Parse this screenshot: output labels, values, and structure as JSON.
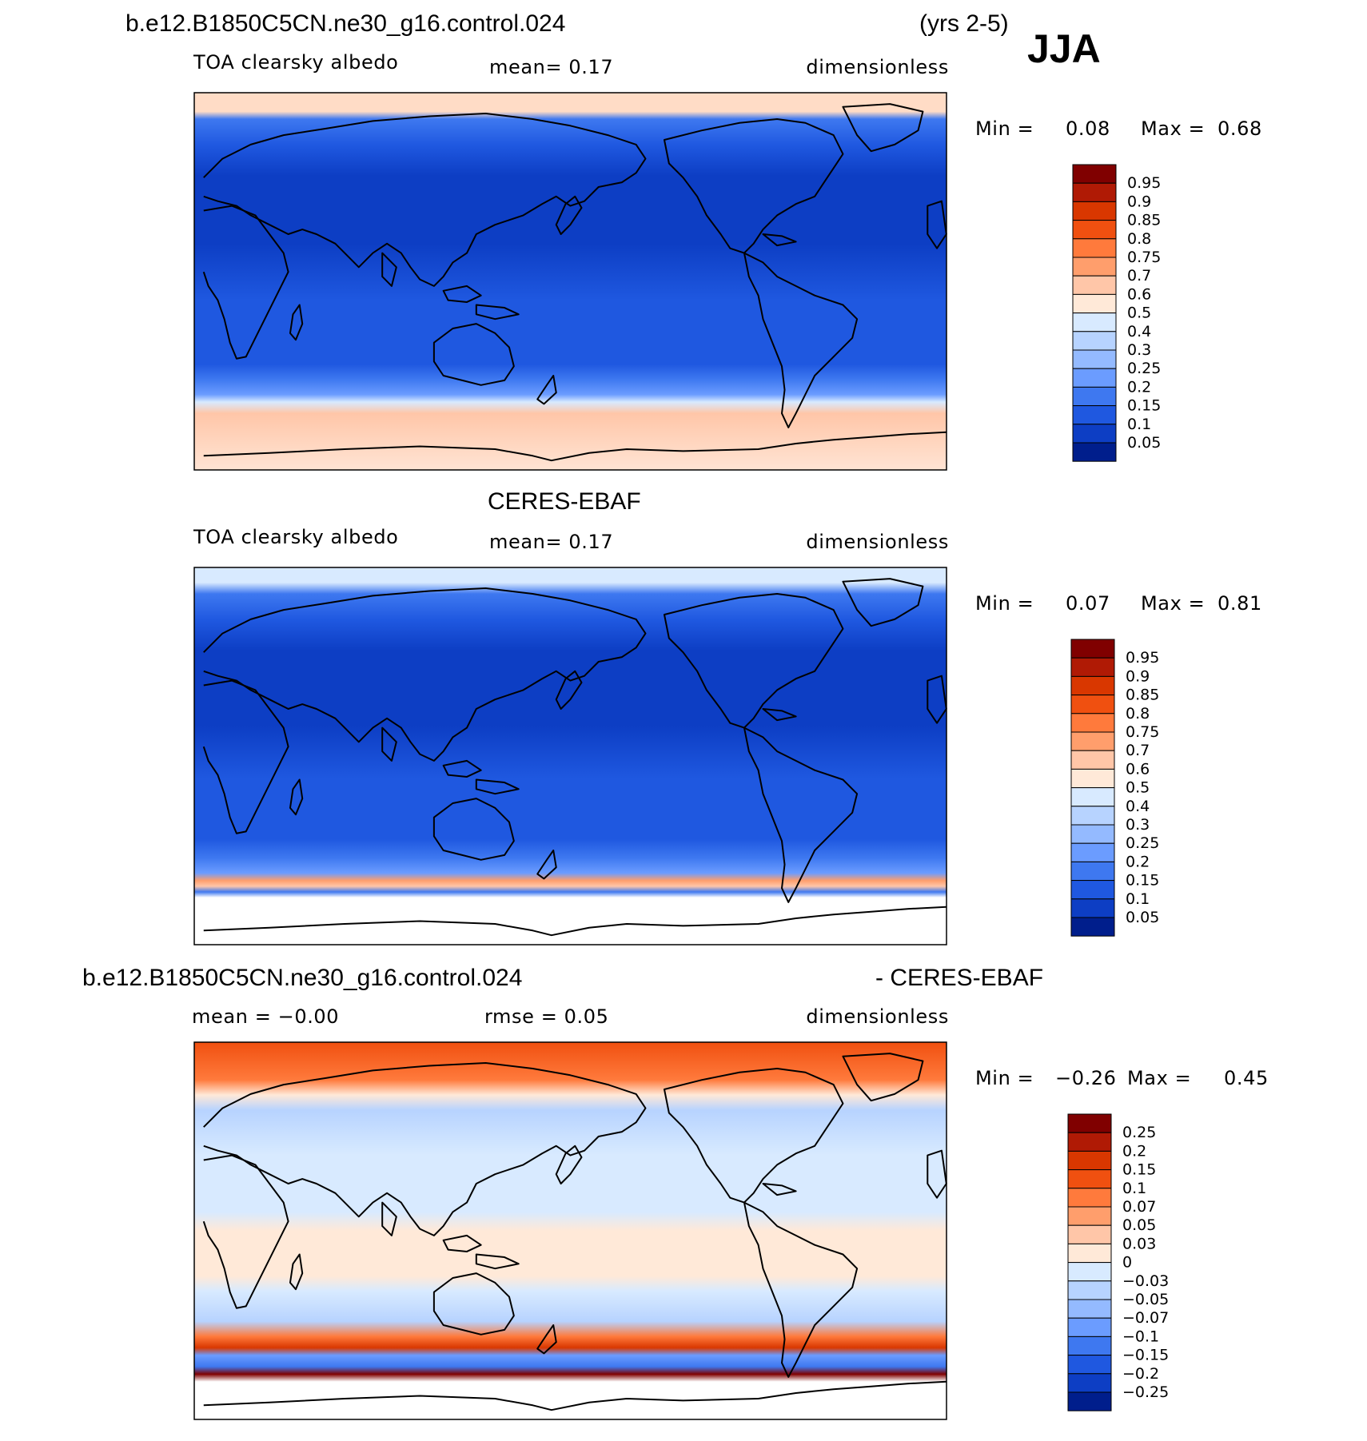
{
  "header": {
    "case_name": "b.e12.B1850C5CN.ne30_g16.control.024",
    "years": "(yrs 2-5)",
    "season": "JJA"
  },
  "panels": [
    {
      "id": "model",
      "title": "",
      "variable": "TOA clearsky albedo",
      "mean_text": "mean=    0.17",
      "units": "dimensionless",
      "minmax": {
        "min_label": "Min =",
        "min": "0.08",
        "max_label": "Max =",
        "max": "0.68"
      },
      "colorbar": {
        "labels": [
          "0.95",
          "0.9",
          "0.85",
          "0.8",
          "0.75",
          "0.7",
          "0.6",
          "0.5",
          "0.4",
          "0.3",
          "0.25",
          "0.2",
          "0.15",
          "0.1",
          "0.05"
        ],
        "colors": [
          "#800000",
          "#b01a05",
          "#d93700",
          "#f05010",
          "#ff7a3c",
          "#ff9e6c",
          "#ffc6a8",
          "#ffe9d8",
          "#d8eaff",
          "#b7d3ff",
          "#94baff",
          "#6b9cff",
          "#3e78f0",
          "#1f58e0",
          "#0d3ec4",
          "#001e8c"
        ]
      }
    },
    {
      "id": "obs",
      "title": "CERES-EBAF",
      "variable": "TOA clearsky albedo",
      "mean_text": "mean=    0.17",
      "units": "dimensionless",
      "minmax": {
        "min_label": "Min =",
        "min": "0.07",
        "max_label": "Max =",
        "max": "0.81"
      },
      "colorbar": {
        "labels": [
          "0.95",
          "0.9",
          "0.85",
          "0.8",
          "0.75",
          "0.7",
          "0.6",
          "0.5",
          "0.4",
          "0.3",
          "0.25",
          "0.2",
          "0.15",
          "0.1",
          "0.05"
        ],
        "colors": [
          "#800000",
          "#b01a05",
          "#d93700",
          "#f05010",
          "#ff7a3c",
          "#ff9e6c",
          "#ffc6a8",
          "#ffe9d8",
          "#d8eaff",
          "#b7d3ff",
          "#94baff",
          "#6b9cff",
          "#3e78f0",
          "#1f58e0",
          "#0d3ec4",
          "#001e8c"
        ]
      }
    },
    {
      "id": "diff",
      "title_left": "b.e12.B1850C5CN.ne30_g16.control.024",
      "title_right": "- CERES-EBAF",
      "mean_text": "mean =   −0.00",
      "rmse_text": "rmse =     0.05",
      "units": "dimensionless",
      "minmax": {
        "min_label": "Min =",
        "min": "−0.26",
        "max_label": "Max =",
        "max": "0.45"
      },
      "colorbar": {
        "labels": [
          "0.25",
          "0.2",
          "0.15",
          "0.1",
          "0.07",
          "0.05",
          "0.03",
          "0",
          "−0.03",
          "−0.05",
          "−0.07",
          "−0.1",
          "−0.15",
          "−0.2",
          "−0.25"
        ],
        "colors": [
          "#800000",
          "#b01a05",
          "#d93700",
          "#f05010",
          "#ff7a3c",
          "#ff9e6c",
          "#ffc6a8",
          "#ffe9d8",
          "#d8eaff",
          "#b7d3ff",
          "#94baff",
          "#6b9cff",
          "#3e78f0",
          "#1f58e0",
          "#0d3ec4",
          "#001e8c"
        ]
      }
    }
  ],
  "chart_data": [
    {
      "type": "heatmap",
      "title": "b.e12.B1850C5CN.ne30_g16.control.024",
      "subtitle": "TOA clearsky albedo",
      "units": "dimensionless",
      "mean": 0.17,
      "min": 0.08,
      "max": 0.68,
      "colorbar_levels": [
        0.05,
        0.1,
        0.15,
        0.2,
        0.25,
        0.3,
        0.4,
        0.5,
        0.6,
        0.7,
        0.75,
        0.8,
        0.85,
        0.9,
        0.95
      ]
    },
    {
      "type": "heatmap",
      "title": "CERES-EBAF",
      "subtitle": "TOA clearsky albedo",
      "units": "dimensionless",
      "mean": 0.17,
      "min": 0.07,
      "max": 0.81,
      "colorbar_levels": [
        0.05,
        0.1,
        0.15,
        0.2,
        0.25,
        0.3,
        0.4,
        0.5,
        0.6,
        0.7,
        0.75,
        0.8,
        0.85,
        0.9,
        0.95
      ]
    },
    {
      "type": "heatmap",
      "title": "b.e12.B1850C5CN.ne30_g16.control.024 - CERES-EBAF",
      "units": "dimensionless",
      "mean": -0.0,
      "rmse": 0.05,
      "min": -0.26,
      "max": 0.45,
      "colorbar_levels": [
        -0.25,
        -0.2,
        -0.15,
        -0.1,
        -0.07,
        -0.05,
        -0.03,
        0,
        0.03,
        0.05,
        0.07,
        0.1,
        0.15,
        0.2,
        0.25
      ]
    }
  ]
}
